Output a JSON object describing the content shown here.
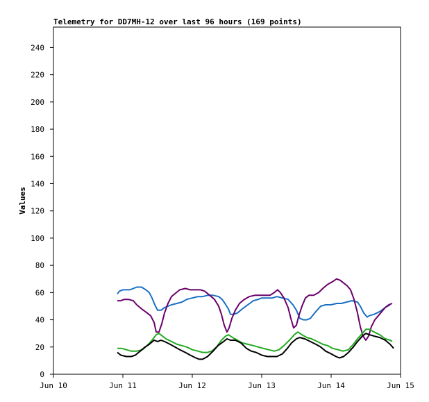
{
  "chart_data": {
    "type": "line",
    "title": "Telemetry for DD7MH-12 over last 96 hours (169 points)",
    "ylabel": "Values",
    "xlabel": "",
    "x_unit": "days",
    "ylim": [
      0,
      255
    ],
    "xlim": [
      10,
      15
    ],
    "yticks": [
      0,
      20,
      40,
      60,
      80,
      100,
      120,
      140,
      160,
      180,
      200,
      220,
      240
    ],
    "xticks": [
      {
        "value": 10,
        "label": "Jun 10"
      },
      {
        "value": 11,
        "label": "Jun 11"
      },
      {
        "value": 12,
        "label": "Jun 12"
      },
      {
        "value": 13,
        "label": "Jun 13"
      },
      {
        "value": 14,
        "label": "Jun 14"
      },
      {
        "value": 15,
        "label": "Jun 15"
      }
    ],
    "grid": false,
    "legend": "none",
    "series": [
      {
        "color": "#1a6fc4",
        "points": [
          [
            10.92,
            59
          ],
          [
            10.95,
            61
          ],
          [
            11.0,
            62
          ],
          [
            11.05,
            62
          ],
          [
            11.1,
            62
          ],
          [
            11.15,
            63
          ],
          [
            11.2,
            64
          ],
          [
            11.27,
            64
          ],
          [
            11.33,
            62
          ],
          [
            11.38,
            60
          ],
          [
            11.42,
            56
          ],
          [
            11.46,
            51
          ],
          [
            11.5,
            47
          ],
          [
            11.55,
            47
          ],
          [
            11.6,
            49
          ],
          [
            11.65,
            50
          ],
          [
            11.7,
            51
          ],
          [
            11.78,
            52
          ],
          [
            11.85,
            53
          ],
          [
            11.92,
            55
          ],
          [
            12.0,
            56
          ],
          [
            12.08,
            57
          ],
          [
            12.15,
            57
          ],
          [
            12.22,
            58
          ],
          [
            12.3,
            58
          ],
          [
            12.38,
            57
          ],
          [
            12.43,
            55
          ],
          [
            12.47,
            52
          ],
          [
            12.52,
            48
          ],
          [
            12.55,
            44
          ],
          [
            12.6,
            44
          ],
          [
            12.65,
            45
          ],
          [
            12.72,
            48
          ],
          [
            12.8,
            51
          ],
          [
            12.88,
            54
          ],
          [
            12.95,
            55
          ],
          [
            13.0,
            56
          ],
          [
            13.08,
            56
          ],
          [
            13.15,
            56
          ],
          [
            13.22,
            57
          ],
          [
            13.3,
            56
          ],
          [
            13.38,
            55
          ],
          [
            13.45,
            51
          ],
          [
            13.5,
            47
          ],
          [
            13.55,
            41
          ],
          [
            13.6,
            40
          ],
          [
            13.65,
            40
          ],
          [
            13.7,
            41
          ],
          [
            13.78,
            46
          ],
          [
            13.85,
            50
          ],
          [
            13.92,
            51
          ],
          [
            14.0,
            51
          ],
          [
            14.08,
            52
          ],
          [
            14.15,
            52
          ],
          [
            14.22,
            53
          ],
          [
            14.3,
            54
          ],
          [
            14.38,
            53
          ],
          [
            14.42,
            50
          ],
          [
            14.47,
            45
          ],
          [
            14.52,
            42
          ],
          [
            14.55,
            43
          ],
          [
            14.62,
            44
          ],
          [
            14.7,
            46
          ],
          [
            14.78,
            49
          ],
          [
            14.85,
            51
          ]
        ]
      },
      {
        "color": "#6a006a",
        "points": [
          [
            10.92,
            54
          ],
          [
            10.97,
            54
          ],
          [
            11.02,
            55
          ],
          [
            11.08,
            55
          ],
          [
            11.15,
            54
          ],
          [
            11.2,
            51
          ],
          [
            11.27,
            48
          ],
          [
            11.35,
            45
          ],
          [
            11.4,
            43
          ],
          [
            11.45,
            38
          ],
          [
            11.48,
            31
          ],
          [
            11.52,
            31
          ],
          [
            11.56,
            37
          ],
          [
            11.6,
            45
          ],
          [
            11.65,
            52
          ],
          [
            11.7,
            57
          ],
          [
            11.77,
            60
          ],
          [
            11.82,
            62
          ],
          [
            11.9,
            63
          ],
          [
            11.97,
            62
          ],
          [
            12.05,
            62
          ],
          [
            12.12,
            62
          ],
          [
            12.18,
            61
          ],
          [
            12.25,
            58
          ],
          [
            12.32,
            55
          ],
          [
            12.38,
            50
          ],
          [
            12.42,
            44
          ],
          [
            12.46,
            36
          ],
          [
            12.5,
            31
          ],
          [
            12.53,
            34
          ],
          [
            12.57,
            41
          ],
          [
            12.62,
            47
          ],
          [
            12.68,
            52
          ],
          [
            12.75,
            55
          ],
          [
            12.82,
            57
          ],
          [
            12.9,
            58
          ],
          [
            12.98,
            58
          ],
          [
            13.05,
            58
          ],
          [
            13.12,
            58
          ],
          [
            13.18,
            60
          ],
          [
            13.23,
            62
          ],
          [
            13.27,
            60
          ],
          [
            13.32,
            56
          ],
          [
            13.38,
            49
          ],
          [
            13.42,
            41
          ],
          [
            13.46,
            34
          ],
          [
            13.5,
            36
          ],
          [
            13.53,
            42
          ],
          [
            13.58,
            50
          ],
          [
            13.63,
            56
          ],
          [
            13.68,
            58
          ],
          [
            13.75,
            58
          ],
          [
            13.82,
            60
          ],
          [
            13.88,
            63
          ],
          [
            13.95,
            66
          ],
          [
            14.02,
            68
          ],
          [
            14.08,
            70
          ],
          [
            14.13,
            69
          ],
          [
            14.18,
            67
          ],
          [
            14.23,
            65
          ],
          [
            14.28,
            62
          ],
          [
            14.33,
            55
          ],
          [
            14.38,
            45
          ],
          [
            14.42,
            35
          ],
          [
            14.46,
            28
          ],
          [
            14.5,
            25
          ],
          [
            14.54,
            28
          ],
          [
            14.58,
            35
          ],
          [
            14.63,
            40
          ],
          [
            14.68,
            43
          ],
          [
            14.73,
            46
          ],
          [
            14.78,
            49
          ],
          [
            14.83,
            51
          ],
          [
            14.88,
            52
          ]
        ]
      },
      {
        "color": "#22aa22",
        "points": [
          [
            10.92,
            19
          ],
          [
            10.98,
            19
          ],
          [
            11.05,
            18
          ],
          [
            11.12,
            17
          ],
          [
            11.2,
            17
          ],
          [
            11.28,
            18
          ],
          [
            11.35,
            21
          ],
          [
            11.42,
            25
          ],
          [
            11.48,
            29
          ],
          [
            11.52,
            30
          ],
          [
            11.57,
            28
          ],
          [
            11.62,
            26
          ],
          [
            11.7,
            24
          ],
          [
            11.78,
            22
          ],
          [
            11.85,
            21
          ],
          [
            11.92,
            20
          ],
          [
            12.0,
            18
          ],
          [
            12.08,
            17
          ],
          [
            12.15,
            16
          ],
          [
            12.22,
            16
          ],
          [
            12.28,
            17
          ],
          [
            12.35,
            20
          ],
          [
            12.42,
            25
          ],
          [
            12.48,
            28
          ],
          [
            12.52,
            29
          ],
          [
            12.58,
            27
          ],
          [
            12.65,
            25
          ],
          [
            12.72,
            23
          ],
          [
            12.8,
            22
          ],
          [
            12.88,
            21
          ],
          [
            12.95,
            20
          ],
          [
            13.02,
            19
          ],
          [
            13.1,
            18
          ],
          [
            13.18,
            17
          ],
          [
            13.25,
            18
          ],
          [
            13.32,
            21
          ],
          [
            13.4,
            25
          ],
          [
            13.47,
            29
          ],
          [
            13.52,
            31
          ],
          [
            13.58,
            29
          ],
          [
            13.65,
            27
          ],
          [
            13.72,
            26
          ],
          [
            13.8,
            24
          ],
          [
            13.88,
            22
          ],
          [
            13.95,
            21
          ],
          [
            14.02,
            19
          ],
          [
            14.1,
            18
          ],
          [
            14.17,
            17
          ],
          [
            14.25,
            18
          ],
          [
            14.32,
            22
          ],
          [
            14.38,
            26
          ],
          [
            14.45,
            30
          ],
          [
            14.5,
            33
          ],
          [
            14.55,
            33
          ],
          [
            14.62,
            31
          ],
          [
            14.7,
            29
          ],
          [
            14.78,
            26
          ],
          [
            14.85,
            25
          ],
          [
            14.88,
            24
          ]
        ]
      },
      {
        "color": "#000000",
        "points": [
          [
            10.92,
            16
          ],
          [
            10.97,
            14
          ],
          [
            11.05,
            13
          ],
          [
            11.12,
            13
          ],
          [
            11.18,
            14
          ],
          [
            11.25,
            17
          ],
          [
            11.32,
            20
          ],
          [
            11.38,
            22
          ],
          [
            11.45,
            25
          ],
          [
            11.5,
            24
          ],
          [
            11.55,
            25
          ],
          [
            11.6,
            24
          ],
          [
            11.68,
            22
          ],
          [
            11.75,
            20
          ],
          [
            11.82,
            18
          ],
          [
            11.9,
            16
          ],
          [
            11.97,
            14
          ],
          [
            12.05,
            12
          ],
          [
            12.1,
            11
          ],
          [
            12.15,
            11
          ],
          [
            12.22,
            13
          ],
          [
            12.3,
            17
          ],
          [
            12.37,
            21
          ],
          [
            12.45,
            24
          ],
          [
            12.5,
            26
          ],
          [
            12.55,
            25
          ],
          [
            12.62,
            25
          ],
          [
            12.7,
            23
          ],
          [
            12.78,
            19
          ],
          [
            12.85,
            17
          ],
          [
            12.92,
            16
          ],
          [
            13.0,
            14
          ],
          [
            13.08,
            13
          ],
          [
            13.15,
            13
          ],
          [
            13.22,
            13
          ],
          [
            13.3,
            15
          ],
          [
            13.37,
            19
          ],
          [
            13.43,
            23
          ],
          [
            13.5,
            26
          ],
          [
            13.55,
            27
          ],
          [
            13.62,
            26
          ],
          [
            13.7,
            24
          ],
          [
            13.78,
            22
          ],
          [
            13.85,
            20
          ],
          [
            13.92,
            17
          ],
          [
            14.0,
            15
          ],
          [
            14.07,
            13
          ],
          [
            14.12,
            12
          ],
          [
            14.18,
            13
          ],
          [
            14.25,
            16
          ],
          [
            14.32,
            20
          ],
          [
            14.38,
            24
          ],
          [
            14.45,
            28
          ],
          [
            14.5,
            30
          ],
          [
            14.55,
            29
          ],
          [
            14.62,
            28
          ],
          [
            14.7,
            27
          ],
          [
            14.78,
            25
          ],
          [
            14.85,
            22
          ],
          [
            14.9,
            19
          ]
        ]
      }
    ]
  }
}
